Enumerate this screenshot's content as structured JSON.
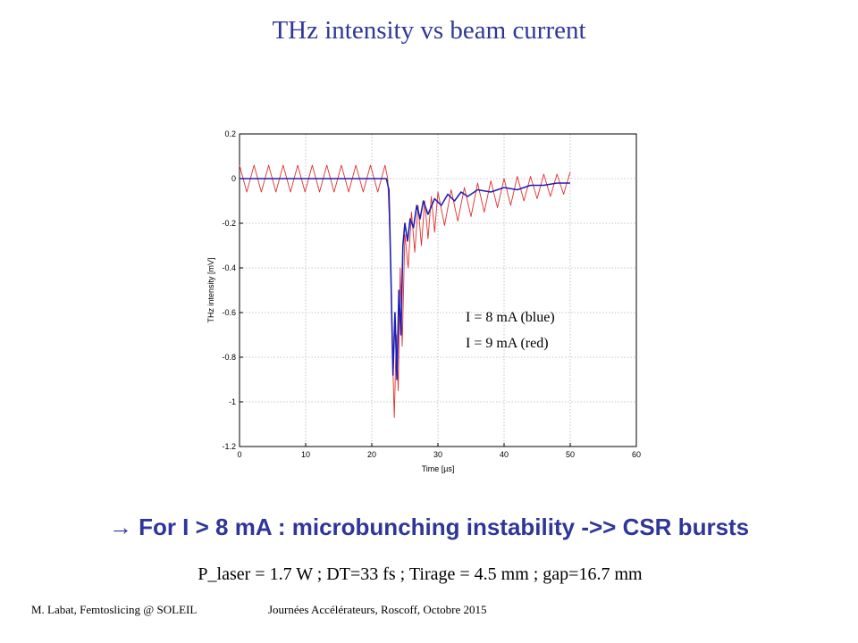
{
  "slide": {
    "title": "THz intensity vs beam current",
    "conclusion_arrow": "→",
    "conclusion_text": "For I > 8 mA : microbunching instability ->> CSR bursts",
    "params": "P_laser = 1.7 W ; DT=33 fs ; Tirage = 4.5 mm ; gap=16.7 mm",
    "footer_left": "M. Labat, Femtoslicing @ SOLEIL",
    "footer_right": "Journées Accélérateurs, Roscoff, Octobre 2015"
  },
  "colors": {
    "title": "#2f3699",
    "blue_series": "#1f1fb4",
    "red_series": "#e0302c"
  },
  "chart_data": {
    "type": "line",
    "xlabel": "Time [µs]",
    "ylabel": "THz intensity [mV]",
    "xlim": [
      0,
      60
    ],
    "ylim": [
      -1.2,
      0.2
    ],
    "xticks": [
      0,
      10,
      20,
      30,
      40,
      50,
      60
    ],
    "yticks": [
      0.2,
      0,
      -0.2,
      -0.4,
      -0.6,
      -0.8,
      -1,
      -1.2
    ],
    "ytick_labels": [
      "0.2",
      "0",
      "-0.2",
      "-0.4",
      "-0.6",
      "-0.8",
      "-1",
      "-1.2"
    ],
    "grid": true,
    "annotation": [
      "I = 8 mA (blue)",
      "I = 9 mA (red)"
    ],
    "series": [
      {
        "color": "blue",
        "x": [
          0,
          22.2,
          22.6,
          22.9,
          23.2,
          23.5,
          23.8,
          24.1,
          24.4,
          24.7,
          25.0,
          25.4,
          25.8,
          26.3,
          26.8,
          27.3,
          27.8,
          28.5,
          29.5,
          30.5,
          31.5,
          32.5,
          33.5,
          34.5,
          36,
          38,
          40,
          42,
          44,
          46,
          48,
          50
        ],
        "y": [
          0.0,
          0.0,
          -0.05,
          -0.45,
          -0.88,
          -0.6,
          -0.9,
          -0.5,
          -0.7,
          -0.3,
          -0.2,
          -0.28,
          -0.18,
          -0.22,
          -0.12,
          -0.18,
          -0.1,
          -0.16,
          -0.09,
          -0.12,
          -0.07,
          -0.1,
          -0.06,
          -0.08,
          -0.05,
          -0.06,
          -0.04,
          -0.05,
          -0.03,
          -0.03,
          -0.02,
          -0.02
        ]
      },
      {
        "color": "red",
        "x": [
          0,
          1.1,
          2.2,
          3.3,
          4.4,
          5.5,
          6.6,
          7.7,
          8.8,
          9.9,
          11.0,
          12.1,
          13.2,
          14.3,
          15.4,
          16.5,
          17.6,
          18.7,
          19.8,
          20.9,
          22.0,
          22.4,
          22.8,
          23.1,
          23.4,
          23.7,
          24.0,
          24.3,
          24.6,
          25.0,
          25.5,
          26.0,
          26.5,
          27.0,
          27.5,
          28.0,
          28.5,
          29.0,
          29.5,
          30.0,
          31,
          32,
          33,
          34,
          35,
          36,
          37,
          38,
          39,
          40,
          41,
          42,
          43,
          44,
          45,
          46,
          47,
          48,
          49,
          50
        ],
        "y": [
          0.06,
          -0.06,
          0.06,
          -0.06,
          0.06,
          -0.06,
          0.06,
          -0.06,
          0.06,
          -0.06,
          0.06,
          -0.06,
          0.06,
          -0.06,
          0.06,
          -0.06,
          0.06,
          -0.06,
          0.06,
          -0.06,
          0.06,
          0.0,
          -0.3,
          -0.75,
          -1.07,
          -0.7,
          -0.95,
          -0.4,
          -0.75,
          -0.25,
          -0.4,
          -0.15,
          -0.33,
          -0.12,
          -0.3,
          -0.1,
          -0.27,
          -0.08,
          -0.24,
          -0.06,
          -0.21,
          -0.05,
          -0.19,
          -0.04,
          -0.17,
          -0.02,
          -0.15,
          -0.01,
          -0.13,
          0.0,
          -0.12,
          0.01,
          -0.1,
          0.01,
          -0.09,
          0.02,
          -0.08,
          0.02,
          -0.07,
          0.03
        ]
      }
    ]
  }
}
